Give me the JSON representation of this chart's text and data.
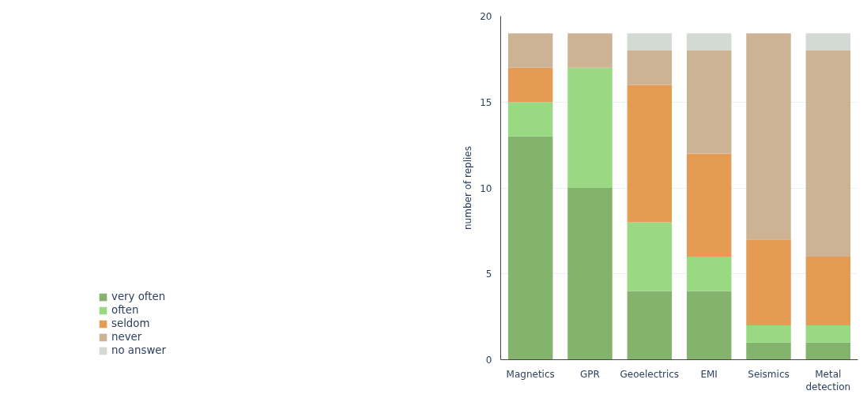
{
  "chart_data": {
    "type": "bar",
    "stacked": true,
    "ylabel": "number of replies",
    "categories": [
      "Magnetics",
      "GPR",
      "Geoelectrics",
      "EMI",
      "Seismics",
      "Metal detection"
    ],
    "series": [
      {
        "name": "very often",
        "color": "#83b36d",
        "values": [
          13,
          10,
          4,
          4,
          1,
          1
        ]
      },
      {
        "name": "often",
        "color": "#98d982",
        "values": [
          2,
          7,
          4,
          2,
          1,
          1
        ]
      },
      {
        "name": "seldom",
        "color": "#e59b54",
        "values": [
          2,
          0,
          8,
          6,
          5,
          4
        ]
      },
      {
        "name": "never",
        "color": "#cdb395",
        "values": [
          2,
          2,
          2,
          6,
          12,
          12
        ]
      },
      {
        "name": "no answer",
        "color": "#d3d9d3",
        "values": [
          0,
          0,
          1,
          1,
          0,
          1
        ]
      }
    ],
    "ylim": [
      0,
      20
    ],
    "yticks": [
      0,
      5,
      10,
      15,
      20
    ],
    "grid": "y",
    "legend": "bottom left"
  }
}
